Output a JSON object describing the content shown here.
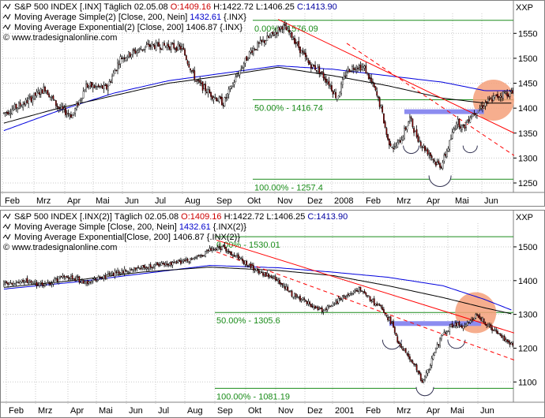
{
  "chart_data": [
    {
      "type": "candlestick",
      "panel_id": "top",
      "header": {
        "line1": {
          "symbol": "S&P 500 INDEX [.INX]",
          "period": "Täglich",
          "date": "02.05.08",
          "open": "O:1409.16",
          "high": "H:1422.72",
          "low": "L:1406.25",
          "close": "C:1413.90"
        },
        "line2": {
          "label": "Moving Average Simple(2) [Close, 200, Nein]",
          "value": "1432.61",
          "suffix": "{.INX}"
        },
        "line3": {
          "label": "Moving Average Exponential(2) [Close, 200]",
          "value": "1406.87",
          "suffix": "{.INX}"
        },
        "line4": {
          "label": "© www.tradesignalonline.com"
        }
      },
      "currency_label": "XXP",
      "y_ticks": [
        1250,
        1300,
        1350,
        1400,
        1450,
        1500,
        1550
      ],
      "ylim": [
        1231,
        1590
      ],
      "x_labels": [
        "Feb",
        "Mrz",
        "Apr",
        "Mai",
        "Jun",
        "Jul",
        "Aug",
        "Sep",
        "Okt",
        "Nov",
        "Dez",
        "2008",
        "Feb",
        "Mrz",
        "Apr",
        "Mai",
        "Jun"
      ],
      "fib_levels": [
        {
          "label": "0.00% - 1576.09",
          "value": 1576.09
        },
        {
          "label": "50.00% - 1416.74",
          "value": 1416.74
        },
        {
          "label": "100.00% - 1257.4",
          "value": 1257.4
        }
      ],
      "series": [
        {
          "key": "price",
          "type": "candles",
          "color_up": "#ffffff",
          "color_down": "#8b0000",
          "color": "#000000",
          "anchors": [
            [
              0,
              1390
            ],
            [
              15,
              1410
            ],
            [
              30,
              1440
            ],
            [
              40,
              1400
            ],
            [
              50,
              1385
            ],
            [
              60,
              1445
            ],
            [
              75,
              1440
            ],
            [
              85,
              1500
            ],
            [
              105,
              1525
            ],
            [
              120,
              1525
            ],
            [
              130,
              1520
            ],
            [
              140,
              1455
            ],
            [
              150,
              1430
            ],
            [
              160,
              1410
            ],
            [
              170,
              1465
            ],
            [
              180,
              1515
            ],
            [
              195,
              1545
            ],
            [
              203,
              1565
            ],
            [
              210,
              1545
            ],
            [
              222,
              1490
            ],
            [
              230,
              1475
            ],
            [
              237,
              1450
            ],
            [
              243,
              1420
            ],
            [
              250,
              1475
            ],
            [
              257,
              1485
            ],
            [
              263,
              1480
            ],
            [
              270,
              1440
            ],
            [
              275,
              1400
            ],
            [
              280,
              1335
            ],
            [
              285,
              1320
            ],
            [
              290,
              1340
            ],
            [
              296,
              1380
            ],
            [
              300,
              1350
            ],
            [
              305,
              1325
            ],
            [
              310,
              1310
            ],
            [
              315,
              1290
            ],
            [
              319,
              1285
            ],
            [
              325,
              1330
            ],
            [
              330,
              1375
            ],
            [
              335,
              1360
            ],
            [
              340,
              1385
            ],
            [
              345,
              1395
            ],
            [
              351,
              1410
            ],
            [
              357,
              1420
            ],
            [
              365,
              1430
            ]
          ]
        },
        {
          "key": "sma200",
          "name": "Moving Average Simple(2)",
          "type": "line",
          "color": "#0000dd",
          "anchors": [
            [
              0,
              1355
            ],
            [
              40,
              1395
            ],
            [
              80,
              1430
            ],
            [
              120,
              1455
            ],
            [
              160,
              1470
            ],
            [
              200,
              1485
            ],
            [
              240,
              1478
            ],
            [
              280,
              1465
            ],
            [
              320,
              1452
            ],
            [
              351,
              1435
            ]
          ]
        },
        {
          "key": "ema200",
          "name": "Moving Average Exponential(2)",
          "type": "line",
          "color": "#000000",
          "anchors": [
            [
              0,
              1370
            ],
            [
              40,
              1400
            ],
            [
              80,
              1425
            ],
            [
              120,
              1450
            ],
            [
              160,
              1465
            ],
            [
              200,
              1482
            ],
            [
              240,
              1465
            ],
            [
              280,
              1445
            ],
            [
              320,
              1420
            ],
            [
              351,
              1410
            ]
          ]
        }
      ],
      "trendlines": [
        {
          "kind": "solid",
          "color": "#ff0000",
          "from": [
            200,
            1578
          ],
          "to": [
            372,
            1350
          ]
        },
        {
          "kind": "dashed",
          "color": "#ff0000",
          "from": [
            250,
            1530
          ],
          "to": [
            372,
            1305
          ]
        }
      ],
      "neckline": {
        "color": "#8c8cf0",
        "from": [
          292,
          1393
        ],
        "to": [
          350,
          1393
        ]
      },
      "shoulder_arcs": [
        {
          "x": 297,
          "y": 1325,
          "r": 10
        },
        {
          "x": 318,
          "y": 1265,
          "r": 14
        },
        {
          "x": 340,
          "y": 1325,
          "r": 9
        }
      ],
      "highlight_circle": {
        "x": 357,
        "y": 1417,
        "r": 17,
        "color": "#f4a07a"
      }
    },
    {
      "type": "candlestick",
      "panel_id": "bottom",
      "header": {
        "line1": {
          "symbol": "S&P 500 INDEX [.INX(2)]",
          "period": "Täglich",
          "date": "02.05.08",
          "open": "O:1409.16",
          "high": "H:1422.72",
          "low": "L:1406.25",
          "close": "C:1413.90"
        },
        "line2": {
          "label": "Moving Average Simple [Close, 200, Nein]",
          "value": "1432.61",
          "suffix": "{.INX(2)}"
        },
        "line3": {
          "label": "Moving Average Exponential[Close, 200]",
          "value": "1406.87",
          "suffix": "{.INX(2)}"
        },
        "line4": {
          "label": "© www.tradesignalonline.com"
        }
      },
      "currency_label": "XXP",
      "y_ticks": [
        1100,
        1200,
        1300,
        1400,
        1500
      ],
      "ylim": [
        1040,
        1570
      ],
      "x_labels": [
        "Feb",
        "Mrz",
        "Apr",
        "Mai",
        "Jun",
        "Jul",
        "Aug",
        "Sep",
        "Okt",
        "Nov",
        "Dez",
        "2001",
        "Feb",
        "Mrz",
        "Apr",
        "Mai",
        "Jun"
      ],
      "fib_levels": [
        {
          "label": "0.00% - 1530.01",
          "value": 1530.01
        },
        {
          "label": "50.00% - 1305.6",
          "value": 1305.6
        },
        {
          "label": "100.00% - 1081.19",
          "value": 1081.19
        }
      ],
      "series": [
        {
          "key": "price",
          "type": "candles",
          "color_up": "#ffffff",
          "color_down": "#8b0000",
          "color": "#000000",
          "anchors": [
            [
              0,
              1390
            ],
            [
              15,
              1400
            ],
            [
              30,
              1385
            ],
            [
              45,
              1415
            ],
            [
              60,
              1395
            ],
            [
              80,
              1420
            ],
            [
              100,
              1440
            ],
            [
              120,
              1450
            ],
            [
              140,
              1465
            ],
            [
              150,
              1490
            ],
            [
              160,
              1500
            ],
            [
              170,
              1470
            ],
            [
              180,
              1440
            ],
            [
              190,
              1420
            ],
            [
              200,
              1400
            ],
            [
              210,
              1360
            ],
            [
              220,
              1340
            ],
            [
              230,
              1310
            ],
            [
              240,
              1330
            ],
            [
              250,
              1360
            ],
            [
              260,
              1375
            ],
            [
              270,
              1335
            ],
            [
              277,
              1310
            ],
            [
              283,
              1270
            ],
            [
              287,
              1220
            ],
            [
              291,
              1200
            ],
            [
              295,
              1180
            ],
            [
              300,
              1150
            ],
            [
              305,
              1100
            ],
            [
              310,
              1140
            ],
            [
              315,
              1200
            ],
            [
              320,
              1240
            ],
            [
              325,
              1262
            ],
            [
              330,
              1270
            ],
            [
              335,
              1265
            ],
            [
              340,
              1280
            ],
            [
              345,
              1300
            ],
            [
              350,
              1280
            ],
            [
              356,
              1255
            ],
            [
              362,
              1240
            ],
            [
              368,
              1215
            ],
            [
              372,
              1205
            ]
          ]
        },
        {
          "key": "sma200",
          "name": "Moving Average Simple",
          "type": "line",
          "color": "#0000dd",
          "anchors": [
            [
              0,
              1375
            ],
            [
              50,
              1395
            ],
            [
              100,
              1420
            ],
            [
              150,
              1445
            ],
            [
              200,
              1438
            ],
            [
              240,
              1425
            ],
            [
              280,
              1410
            ],
            [
              320,
              1385
            ],
            [
              350,
              1345
            ],
            [
              372,
              1310
            ]
          ]
        },
        {
          "key": "ema200",
          "name": "Moving Average Exponential",
          "type": "line",
          "color": "#000000",
          "anchors": [
            [
              0,
              1380
            ],
            [
              50,
              1400
            ],
            [
              100,
              1425
            ],
            [
              150,
              1440
            ],
            [
              200,
              1430
            ],
            [
              240,
              1415
            ],
            [
              280,
              1385
            ],
            [
              320,
              1350
            ],
            [
              350,
              1320
            ],
            [
              372,
              1300
            ]
          ]
        }
      ],
      "trendlines": [
        {
          "kind": "solid",
          "color": "#ff0000",
          "from": [
            155,
            1520
          ],
          "to": [
            372,
            1245
          ]
        },
        {
          "kind": "dashed",
          "color": "#ff0000",
          "from": [
            155,
            1485
          ],
          "to": [
            372,
            1165
          ]
        }
      ],
      "neckline": {
        "color": "#8c8cf0",
        "from": [
          281,
          1273
        ],
        "to": [
          348,
          1273
        ]
      },
      "shoulder_arcs": [
        {
          "x": 283,
          "y": 1225,
          "r": 12
        },
        {
          "x": 307,
          "y": 1085,
          "r": 11
        },
        {
          "x": 330,
          "y": 1225,
          "r": 11
        }
      ],
      "highlight_circle": {
        "x": 344,
        "y": 1305,
        "r": 19,
        "color": "#f4a07a"
      }
    }
  ],
  "colors": {
    "background": "#ffffff",
    "grid": "#c8c8c8",
    "fib": "#1a8c1a",
    "text": "#000000",
    "price_red": "#cc0000",
    "sma_blue": "#0000cc"
  }
}
